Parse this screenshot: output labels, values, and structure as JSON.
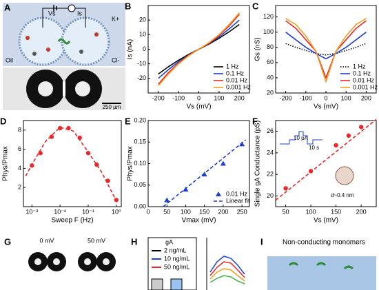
{
  "chart_data": [
    {
      "type": "line",
      "panel": "B",
      "xlabel": "Vs (mV)",
      "ylabel": "Is (nA)",
      "xlim": [
        -250,
        250
      ],
      "ylim": [
        -30,
        30
      ],
      "xticks": [
        -200,
        -100,
        0,
        100,
        200
      ],
      "yticks": [
        -20,
        -10,
        0,
        10,
        20
      ],
      "legend": "lower right",
      "x": [
        -200,
        -150,
        -100,
        -50,
        0,
        50,
        100,
        150,
        200
      ],
      "series": [
        {
          "name": "1 Hz",
          "color": "#000000",
          "style": "line",
          "values": [
            -17,
            -12,
            -7.5,
            -3.5,
            0,
            3.5,
            7.5,
            12,
            17
          ]
        },
        {
          "name": "0.1 Hz",
          "color": "#1f3fd1",
          "style": "line",
          "values": [
            -20,
            -14,
            -8.5,
            -4,
            0,
            4,
            8.5,
            14,
            20
          ]
        },
        {
          "name": "0.01 Hz",
          "color": "#e8282b",
          "style": "line",
          "values": [
            -24,
            -16,
            -9.5,
            -4,
            0,
            4,
            9.5,
            16,
            24
          ]
        },
        {
          "name": "0.001 Hz",
          "color": "#f0a020",
          "style": "line",
          "values": [
            -25,
            -17,
            -10,
            -4.5,
            0,
            4.5,
            10,
            17,
            25
          ]
        }
      ]
    },
    {
      "type": "line",
      "panel": "C",
      "xlabel": "Vs (mV)",
      "ylabel": "Gs (nS)",
      "xlim": [
        -250,
        250
      ],
      "ylim": [
        20,
        135
      ],
      "xticks": [
        -200,
        -100,
        0,
        100,
        200
      ],
      "yticks": [
        20,
        40,
        60,
        80,
        100,
        120
      ],
      "legend": "lower right",
      "x": [
        -200,
        -150,
        -100,
        -50,
        0,
        50,
        100,
        150,
        200
      ],
      "series": [
        {
          "name": "1 Hz",
          "color": "#000000",
          "style": "dot",
          "values": [
            85,
            80,
            76,
            72,
            70,
            72,
            76,
            80,
            85
          ]
        },
        {
          "name": "0.1 Hz",
          "color": "#1f3fd1",
          "style": "line",
          "values": [
            100,
            90,
            80,
            72,
            65,
            72,
            80,
            90,
            100
          ]
        },
        {
          "name": "0.01 Hz",
          "color": "#e8282b",
          "style": "line",
          "values": [
            115,
            105,
            90,
            75,
            40,
            75,
            90,
            105,
            115
          ]
        },
        {
          "name": "0.001 Hz",
          "color": "#f0a020",
          "style": "line",
          "values": [
            118,
            110,
            95,
            75,
            35,
            75,
            95,
            110,
            118
          ]
        }
      ]
    },
    {
      "type": "scatter",
      "panel": "D",
      "xlabel": "Sweep F (Hz)",
      "ylabel": "Phys/Pmax",
      "log_x": true,
      "xlim": [
        0.0005,
        1.5
      ],
      "ylim": [
        0,
        9
      ],
      "xticks": [
        {
          "value": 0.001,
          "label": "10⁻³"
        },
        {
          "value": 0.01,
          "label": "10⁻²"
        },
        {
          "value": 0.1,
          "label": "10⁻¹"
        },
        {
          "value": 1,
          "label": "10⁰"
        }
      ],
      "yticks": [
        2,
        4,
        6,
        8
      ],
      "series": [
        {
          "color": "#e8282b",
          "style": "markers",
          "marker": "circle",
          "x": [
            0.001,
            0.002,
            0.005,
            0.01,
            0.02,
            0.05,
            0.1,
            0.2,
            0.5,
            1
          ],
          "values": [
            4.3,
            5.6,
            7.3,
            8.2,
            8.2,
            7.2,
            5.6,
            4.4,
            2.7,
            0.7
          ]
        },
        {
          "color": "#e8282b",
          "style": "dash",
          "x": [
            0.0006,
            0.001,
            0.003,
            0.01,
            0.03,
            0.1,
            0.3,
            1
          ],
          "values": [
            3.2,
            4.4,
            6.8,
            8.3,
            7.9,
            5.7,
            3.6,
            0.6
          ]
        }
      ]
    },
    {
      "type": "scatter",
      "panel": "E",
      "xlabel": "Vmax (mV)",
      "ylabel": "Phys/Pmax",
      "xlim": [
        0,
        270
      ],
      "ylim": [
        0,
        0.2
      ],
      "xticks": [
        0,
        50,
        100,
        150,
        200,
        250
      ],
      "yticks": [
        {
          "value": 0,
          "label": "0.00"
        },
        {
          "value": 0.05,
          "label": "0.05"
        },
        {
          "value": 0.1,
          "label": "0.10"
        },
        {
          "value": 0.15,
          "label": "0.15"
        },
        {
          "value": 0.2,
          "label": "0.20"
        }
      ],
      "legend": "lower right",
      "series": [
        {
          "name": "0.01 Hz",
          "color": "#1f3fd1",
          "style": "markers",
          "marker": "triangle",
          "x": [
            50,
            100,
            150,
            200,
            250
          ],
          "values": [
            0.015,
            0.04,
            0.075,
            0.1,
            0.145
          ]
        },
        {
          "name": "Linear fit",
          "color": "#1f3fd1",
          "style": "dash",
          "x": [
            40,
            260
          ],
          "values": [
            0,
            0.155
          ]
        }
      ]
    },
    {
      "type": "scatter",
      "panel": "F",
      "xlabel": "Vs (mV)",
      "ylabel": "Single gA Conductance (pS)",
      "xlim": [
        30,
        230
      ],
      "ylim": [
        19,
        27
      ],
      "xticks": [
        50,
        100,
        150,
        200
      ],
      "yticks": [
        20,
        22,
        24,
        26
      ],
      "annotations": [
        "10 pA",
        "10 s",
        "d~0.4 nm"
      ],
      "series": [
        {
          "color": "#e8282b",
          "style": "markers",
          "marker": "circle",
          "x": [
            50,
            100,
            150,
            175,
            200
          ],
          "values": [
            20.7,
            22.3,
            24.7,
            25.6,
            26.4
          ]
        },
        {
          "color": "#e8282b",
          "style": "dash",
          "x": [
            30,
            230
          ],
          "values": [
            19.6,
            27.1
          ]
        }
      ]
    }
  ],
  "diagrams": {
    "A": {
      "panel": "A",
      "voltage": "Vs",
      "current": "Is",
      "cation": "K+",
      "anion": "Cl-",
      "medium": "Oil",
      "scale": "250 µm"
    },
    "G": {
      "panel": "G",
      "labels": [
        "0 mV",
        "50 mV"
      ]
    },
    "H": {
      "panel": "H",
      "legend_title": "gA",
      "labels": [
        "2 ng/mL",
        "10 ng/mL",
        "50 ng/mL"
      ]
    },
    "I": {
      "panel": "I",
      "title": "Non-conducting monomers"
    }
  }
}
